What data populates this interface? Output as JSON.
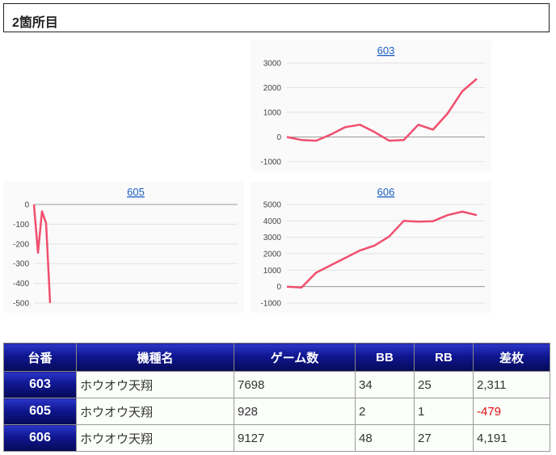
{
  "section": {
    "title": "2箇所目"
  },
  "charts": [
    {
      "id": "c603",
      "title": "603",
      "yticks": [
        "3000",
        "2000",
        "1000",
        "0",
        "-1000"
      ],
      "chart_data": {
        "type": "line",
        "title": "603",
        "ylim": [
          -1000,
          3000
        ],
        "color": "#f04e6e",
        "values": [
          0,
          -120,
          -150,
          100,
          400,
          500,
          200,
          -150,
          -120,
          500,
          300,
          950,
          1850,
          2360
        ]
      }
    },
    {
      "id": "c605",
      "title": "605",
      "yticks": [
        "0",
        "-100",
        "-200",
        "-300",
        "-400",
        "-500"
      ],
      "chart_data": {
        "type": "line",
        "title": "605",
        "ylim": [
          -500,
          0
        ],
        "color": "#f04e6e",
        "values": [
          0,
          -245,
          -35,
          -95,
          -500
        ]
      }
    },
    {
      "id": "c606",
      "title": "606",
      "yticks": [
        "5000",
        "4000",
        "3000",
        "2000",
        "1000",
        "0",
        "-1000"
      ],
      "chart_data": {
        "type": "line",
        "title": "606",
        "ylim": [
          -1000,
          5000
        ],
        "color": "#f04e6e",
        "values": [
          0,
          -50,
          850,
          1300,
          1750,
          2200,
          2500,
          3050,
          4000,
          3950,
          3980,
          4350,
          4560,
          4350
        ]
      }
    }
  ],
  "table": {
    "headers": [
      "台番",
      "機種名",
      "ゲーム数",
      "BB",
      "RB",
      "差枚"
    ],
    "rows": [
      {
        "no": "603",
        "machine": "ホウオウ天翔",
        "games": "7698",
        "bb": "34",
        "rb": "25",
        "diff": "2,311",
        "negative": false
      },
      {
        "no": "605",
        "machine": "ホウオウ天翔",
        "games": "928",
        "bb": "2",
        "rb": "1",
        "diff": "-479",
        "negative": true
      },
      {
        "no": "606",
        "machine": "ホウオウ天翔",
        "games": "9127",
        "bb": "48",
        "rb": "27",
        "diff": "4,191",
        "negative": false
      }
    ]
  }
}
